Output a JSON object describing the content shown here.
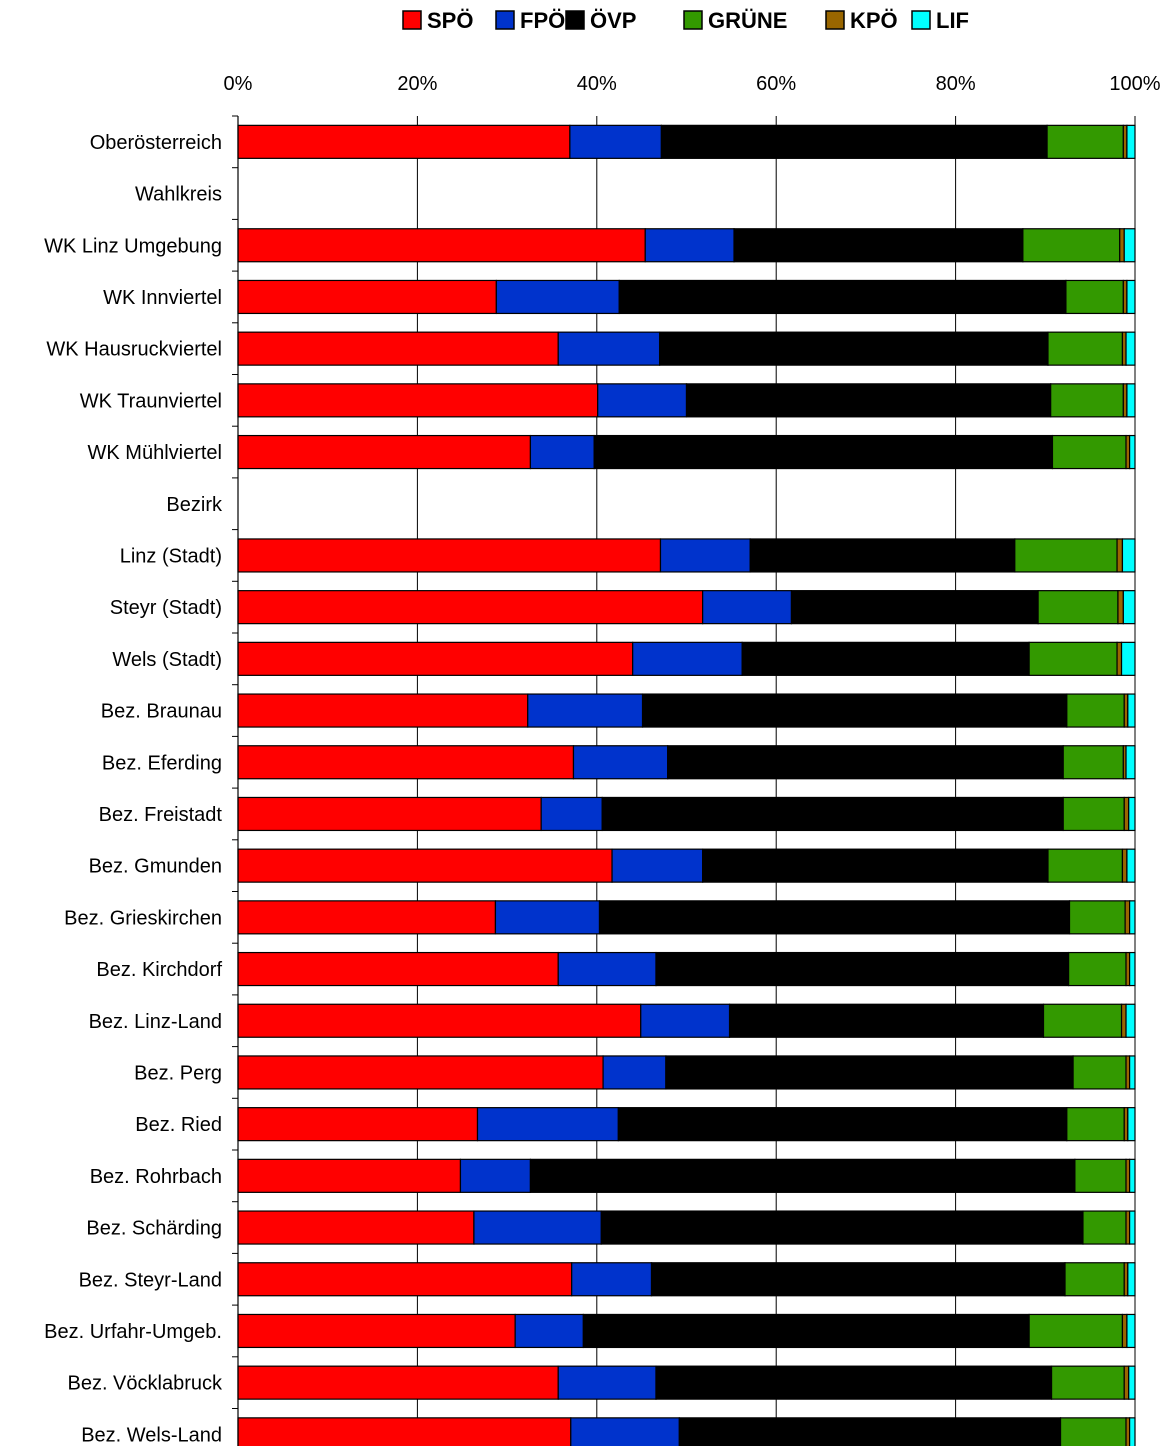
{
  "chart_data": {
    "type": "bar",
    "orientation": "horizontal",
    "stacked": "percent",
    "legend_position": "top",
    "grid": true,
    "xlim": [
      0,
      100
    ],
    "x_ticks": [
      "0%",
      "20%",
      "40%",
      "60%",
      "80%",
      "100%"
    ],
    "categories": [
      "Oberösterreich",
      "Wahlkreis",
      "WK Linz Umgebung",
      "WK Innviertel",
      "WK Hausruckviertel",
      "WK Traunviertel",
      "WK Mühlviertel",
      "Bezirk",
      "Linz (Stadt)",
      "Steyr (Stadt)",
      "Wels (Stadt)",
      "Bez. Braunau",
      "Bez. Eferding",
      "Bez. Freistadt",
      "Bez. Gmunden",
      "Bez. Grieskirchen",
      "Bez. Kirchdorf",
      "Bez. Linz-Land",
      "Bez. Perg",
      "Bez. Ried",
      "Bez. Rohrbach",
      "Bez. Schärding",
      "Bez. Steyr-Land",
      "Bez. Urfahr-Umgeb.",
      "Bez. Vöcklabruck",
      "Bez. Wels-Land"
    ],
    "series": [
      {
        "name": "SPÖ",
        "color": "#ff0000",
        "values": [
          37.0,
          null,
          45.4,
          28.8,
          35.7,
          40.1,
          32.6,
          null,
          47.1,
          51.8,
          44.0,
          32.3,
          37.4,
          33.8,
          41.7,
          28.7,
          35.7,
          44.9,
          40.7,
          26.7,
          24.8,
          26.3,
          37.2,
          30.9,
          35.7,
          37.1
        ]
      },
      {
        "name": "FPÖ",
        "color": "#0033cc",
        "values": [
          10.2,
          null,
          9.9,
          13.7,
          11.3,
          9.9,
          7.1,
          null,
          10.0,
          9.9,
          12.2,
          12.8,
          10.5,
          6.8,
          10.1,
          11.6,
          10.9,
          9.9,
          7.0,
          15.7,
          7.8,
          14.2,
          8.9,
          7.6,
          10.9,
          12.1
        ]
      },
      {
        "name": "ÖVP",
        "color": "#000000",
        "values": [
          43.0,
          null,
          32.2,
          49.8,
          43.3,
          40.6,
          51.1,
          null,
          29.5,
          27.5,
          32.0,
          47.3,
          44.1,
          51.4,
          38.5,
          52.4,
          46.0,
          35.0,
          45.4,
          50.0,
          60.7,
          53.7,
          46.1,
          49.7,
          44.1,
          42.5
        ]
      },
      {
        "name": "GRÜNE",
        "color": "#339900",
        "values": [
          8.5,
          null,
          10.8,
          6.4,
          8.3,
          8.1,
          8.2,
          null,
          11.4,
          8.9,
          9.8,
          6.4,
          6.7,
          6.8,
          8.3,
          6.2,
          6.4,
          8.7,
          5.9,
          6.4,
          5.7,
          4.8,
          6.6,
          10.4,
          8.1,
          7.3
        ]
      },
      {
        "name": "KPÖ",
        "color": "#996600",
        "values": [
          0.4,
          null,
          0.5,
          0.4,
          0.4,
          0.4,
          0.4,
          null,
          0.6,
          0.6,
          0.5,
          0.4,
          0.3,
          0.5,
          0.5,
          0.5,
          0.4,
          0.5,
          0.4,
          0.4,
          0.4,
          0.4,
          0.4,
          0.5,
          0.5,
          0.4
        ]
      },
      {
        "name": "LIF",
        "color": "#00ffff",
        "values": [
          0.9,
          null,
          1.2,
          0.9,
          1.0,
          0.9,
          0.6,
          null,
          1.4,
          1.3,
          1.5,
          0.8,
          1.0,
          0.7,
          0.9,
          0.6,
          0.6,
          1.0,
          0.6,
          0.8,
          0.6,
          0.6,
          0.8,
          0.9,
          0.7,
          0.6
        ]
      }
    ]
  }
}
